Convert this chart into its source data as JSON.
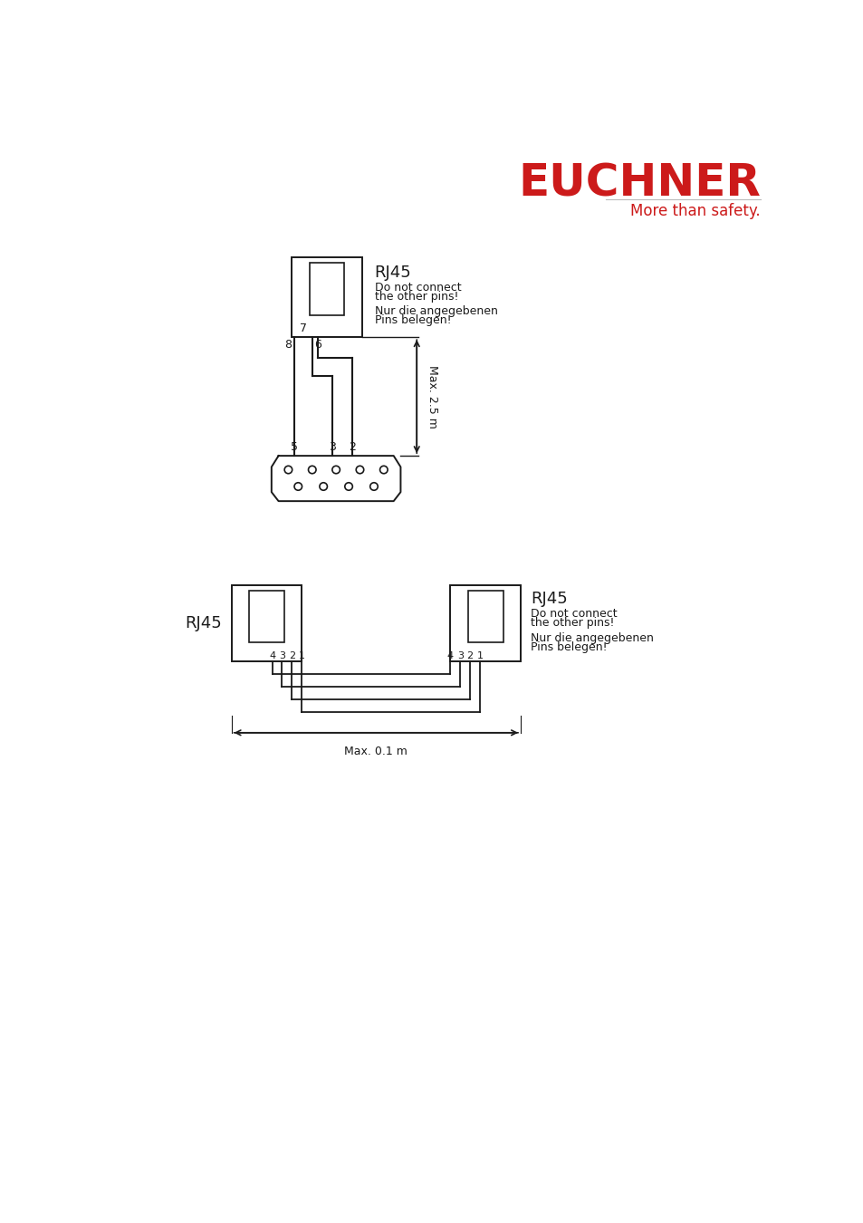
{
  "bg_color": "#ffffff",
  "line_color": "#1a1a1a",
  "red_color": "#cc1a1a",
  "brand_name": "EUCHNER",
  "brand_tagline": "More than safety.",
  "diag1": {
    "label": "RJ45",
    "note_line1": "Do not connect",
    "note_line2": "the other pins!",
    "note_line3": "Nur die angegebenen",
    "note_line4": "Pins belegen!",
    "dim_label": "Max. 2.5 m"
  },
  "diag2": {
    "label_left": "RJ45",
    "label_right": "RJ45",
    "note_line1": "Do not connect",
    "note_line2": "the other pins!",
    "note_line3": "Nur die angegebenen",
    "note_line4": "Pins belegen!",
    "dim_label": "Max. 0.1 m",
    "pins_left": [
      "4",
      "3",
      "2",
      "1"
    ],
    "pins_right": [
      "4",
      "3",
      "2",
      "1"
    ]
  }
}
